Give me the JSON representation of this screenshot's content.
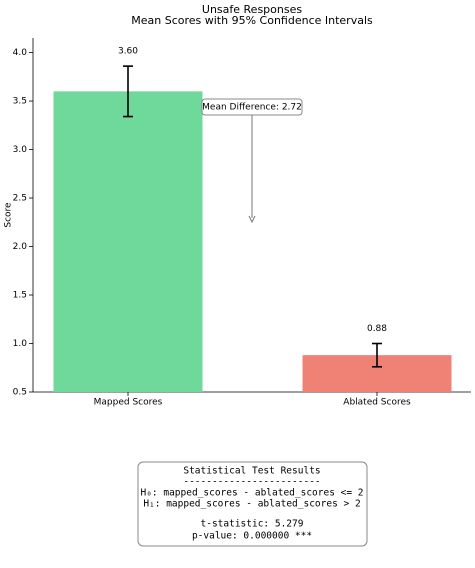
{
  "chart_data": {
    "type": "bar",
    "title": "Unsafe Responses",
    "subtitle": "Mean Scores with 95% Confidence Intervals",
    "y_label": "Score",
    "categories": [
      "Mapped Scores",
      "Ablated Scores"
    ],
    "values": [
      3.6,
      0.88
    ],
    "value_labels": [
      "3.60",
      "0.88"
    ],
    "errors": [
      0.26,
      0.12
    ],
    "colors": [
      "#6fd99b",
      "#ef8175"
    ],
    "ylim": [
      0.5,
      4.15
    ],
    "yticks": [
      0.5,
      {
        "value": 1,
        "label": "1.0"
      },
      1.5,
      {
        "value": 2,
        "label": "2.0"
      },
      2.5,
      {
        "value": 3,
        "label": "3.0"
      },
      3.5,
      {
        "value": 4,
        "label": "4.0"
      }
    ],
    "annotation": "Mean Difference: 2.72",
    "stats_box": {
      "title": "Statistical Test Results",
      "separator": "------------------------",
      "lines": [
        "H₀: mapped_scores - ablated_scores <= 2",
        "H₁: mapped_scores - ablated_scores > 2"
      ],
      "result_lines": [
        "t-statistic: 5.279",
        "p-value: 0.000000 ***"
      ]
    }
  }
}
